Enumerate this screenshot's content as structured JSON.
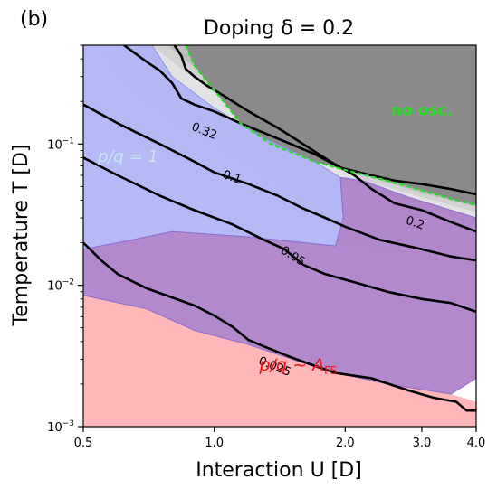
{
  "panel_label": "(b)",
  "chart_data": {
    "type": "contour",
    "title": "Doping δ = 0.2",
    "xlabel": "Interaction U  [D]",
    "ylabel": "Temperature T  [D]",
    "x_scale": "log",
    "y_scale": "log",
    "xlim": [
      0.5,
      4.0
    ],
    "ylim": [
      0.001,
      0.5
    ],
    "x_ticks": [
      {
        "value": 0.5,
        "label": "0.5"
      },
      {
        "value": 1.0,
        "label": "1.0"
      },
      {
        "value": 2.0,
        "label": "2.0"
      },
      {
        "value": 3.0,
        "label": "3.0"
      },
      {
        "value": 4.0,
        "label": "4.0"
      }
    ],
    "y_ticks": [
      {
        "value": 0.001,
        "base": "10",
        "exp": "−3"
      },
      {
        "value": 0.01,
        "base": "10",
        "exp": "−2"
      },
      {
        "value": 0.1,
        "base": "10",
        "exp": "−1"
      }
    ],
    "colors": {
      "regime_pq1": "#a8aef5",
      "regime_afs": "#ffb3b5",
      "regime_overlap": "#a574c4",
      "no_osc_region": "#8a8a8a",
      "no_osc_boundary": "#22dd22",
      "contour": "#000000"
    },
    "regions": [
      {
        "name": "p/q = 1",
        "label_color": "#c4e6f0",
        "label_at": [
          0.54,
          0.075
        ],
        "polygon": [
          [
            0.5,
            0.5
          ],
          [
            0.72,
            0.5
          ],
          [
            0.8,
            0.3
          ],
          [
            1.0,
            0.18
          ],
          [
            1.3,
            0.11
          ],
          [
            1.7,
            0.075
          ],
          [
            1.95,
            0.058
          ],
          [
            1.98,
            0.03
          ],
          [
            1.9,
            0.019
          ],
          [
            1.2,
            0.022
          ],
          [
            0.8,
            0.024
          ],
          [
            0.6,
            0.02
          ],
          [
            0.5,
            0.018
          ]
        ]
      },
      {
        "name": "p/q ~ A_FS",
        "label_color": "#ee1111",
        "label_at": [
          1.27,
          0.0025
        ],
        "polygon": [
          [
            0.5,
            0.001
          ],
          [
            4.0,
            0.001
          ],
          [
            4.0,
            0.0015
          ],
          [
            3.5,
            0.0017
          ],
          [
            2.5,
            0.002
          ],
          [
            1.8,
            0.0025
          ],
          [
            1.2,
            0.0038
          ],
          [
            0.9,
            0.0048
          ],
          [
            0.7,
            0.0068
          ],
          [
            0.5,
            0.0085
          ]
        ]
      },
      {
        "name": "overlap",
        "polygon": [
          [
            0.5,
            0.018
          ],
          [
            0.6,
            0.02
          ],
          [
            0.8,
            0.024
          ],
          [
            1.2,
            0.022
          ],
          [
            1.9,
            0.019
          ],
          [
            1.98,
            0.03
          ],
          [
            1.95,
            0.058
          ],
          [
            2.2,
            0.055
          ],
          [
            2.8,
            0.042
          ],
          [
            4.0,
            0.03
          ],
          [
            4.0,
            0.0022
          ],
          [
            3.5,
            0.0017
          ],
          [
            2.5,
            0.002
          ],
          [
            1.8,
            0.0025
          ],
          [
            1.2,
            0.0038
          ],
          [
            0.9,
            0.0048
          ],
          [
            0.7,
            0.0068
          ],
          [
            0.5,
            0.0085
          ]
        ]
      },
      {
        "name": "no osc.",
        "label_color": "#22dd22",
        "label_at": [
          2.55,
          0.16
        ],
        "polygon": [
          [
            0.86,
            0.5
          ],
          [
            4.0,
            0.5
          ],
          [
            4.0,
            0.037
          ],
          [
            3.6,
            0.04
          ],
          [
            3.0,
            0.047
          ],
          [
            2.5,
            0.055
          ],
          [
            2.1,
            0.063
          ],
          [
            1.7,
            0.075
          ],
          [
            1.35,
            0.1
          ],
          [
            1.15,
            0.14
          ],
          [
            1.05,
            0.2
          ],
          [
            0.96,
            0.28
          ],
          [
            0.9,
            0.36
          ]
        ]
      }
    ],
    "series": [
      {
        "name": "0.32",
        "label_at": [
          0.95,
          0.125
        ],
        "values": [
          [
            0.62,
            0.5
          ],
          [
            0.65,
            0.45
          ],
          [
            0.7,
            0.38
          ],
          [
            0.75,
            0.33
          ],
          [
            0.8,
            0.27
          ],
          [
            0.84,
            0.21
          ],
          [
            0.9,
            0.19
          ],
          [
            1.0,
            0.17
          ],
          [
            1.15,
            0.14
          ],
          [
            1.3,
            0.12
          ],
          [
            1.5,
            0.1
          ],
          [
            1.7,
            0.085
          ],
          [
            1.95,
            0.068
          ],
          [
            2.3,
            0.06
          ],
          [
            2.6,
            0.055
          ],
          [
            3.0,
            0.052
          ],
          [
            3.5,
            0.048
          ],
          [
            4.0,
            0.044
          ]
        ]
      },
      {
        "name": "0.2",
        "label_at": [
          2.9,
          0.028
        ],
        "values": [
          [
            0.81,
            0.5
          ],
          [
            0.84,
            0.42
          ],
          [
            0.86,
            0.34
          ],
          [
            0.9,
            0.3
          ],
          [
            0.96,
            0.26
          ],
          [
            1.05,
            0.22
          ],
          [
            1.2,
            0.17
          ],
          [
            1.4,
            0.13
          ],
          [
            1.6,
            0.1
          ],
          [
            1.85,
            0.075
          ],
          [
            2.1,
            0.06
          ],
          [
            2.3,
            0.048
          ],
          [
            2.6,
            0.038
          ],
          [
            3.0,
            0.034
          ],
          [
            3.5,
            0.028
          ],
          [
            4.0,
            0.024
          ]
        ]
      },
      {
        "name": "0.1",
        "label_at": [
          1.1,
          0.059
        ],
        "values": [
          [
            0.5,
            0.19
          ],
          [
            0.6,
            0.14
          ],
          [
            0.75,
            0.1
          ],
          [
            0.9,
            0.075
          ],
          [
            1.0,
            0.063
          ],
          [
            1.2,
            0.052
          ],
          [
            1.4,
            0.043
          ],
          [
            1.6,
            0.035
          ],
          [
            1.8,
            0.03
          ],
          [
            2.0,
            0.026
          ],
          [
            2.4,
            0.021
          ],
          [
            3.0,
            0.018
          ],
          [
            3.5,
            0.016
          ],
          [
            4.0,
            0.015
          ]
        ]
      },
      {
        "name": "0.05",
        "label_at": [
          1.52,
          0.0163
        ],
        "values": [
          [
            0.5,
            0.08
          ],
          [
            0.6,
            0.06
          ],
          [
            0.75,
            0.043
          ],
          [
            0.9,
            0.034
          ],
          [
            1.1,
            0.027
          ],
          [
            1.3,
            0.021
          ],
          [
            1.45,
            0.018
          ],
          [
            1.6,
            0.014
          ],
          [
            1.8,
            0.012
          ],
          [
            2.1,
            0.0105
          ],
          [
            2.5,
            0.009
          ],
          [
            3.0,
            0.008
          ],
          [
            3.5,
            0.0075
          ],
          [
            4.0,
            0.0065
          ]
        ]
      },
      {
        "name": "0.025",
        "label_at": [
          1.38,
          0.0027
        ],
        "values": [
          [
            0.5,
            0.02
          ],
          [
            0.55,
            0.015
          ],
          [
            0.6,
            0.012
          ],
          [
            0.7,
            0.0095
          ],
          [
            0.8,
            0.0082
          ],
          [
            0.9,
            0.0072
          ],
          [
            1.0,
            0.0061
          ],
          [
            1.1,
            0.0051
          ],
          [
            1.2,
            0.0041
          ],
          [
            1.3,
            0.0037
          ],
          [
            1.5,
            0.0031
          ],
          [
            1.7,
            0.0027
          ],
          [
            1.9,
            0.0024
          ],
          [
            2.3,
            0.0022
          ],
          [
            2.8,
            0.0018
          ],
          [
            3.2,
            0.0016
          ],
          [
            3.6,
            0.0015
          ],
          [
            3.8,
            0.0013
          ],
          [
            4.0,
            0.0013
          ]
        ]
      }
    ],
    "no_osc_boundary": [
      [
        0.86,
        0.5
      ],
      [
        0.9,
        0.36
      ],
      [
        0.96,
        0.28
      ],
      [
        1.05,
        0.2
      ],
      [
        1.15,
        0.14
      ],
      [
        1.35,
        0.1
      ],
      [
        1.7,
        0.075
      ],
      [
        2.1,
        0.063
      ],
      [
        2.5,
        0.055
      ],
      [
        3.0,
        0.047
      ],
      [
        3.6,
        0.04
      ],
      [
        4.0,
        0.037
      ]
    ]
  }
}
